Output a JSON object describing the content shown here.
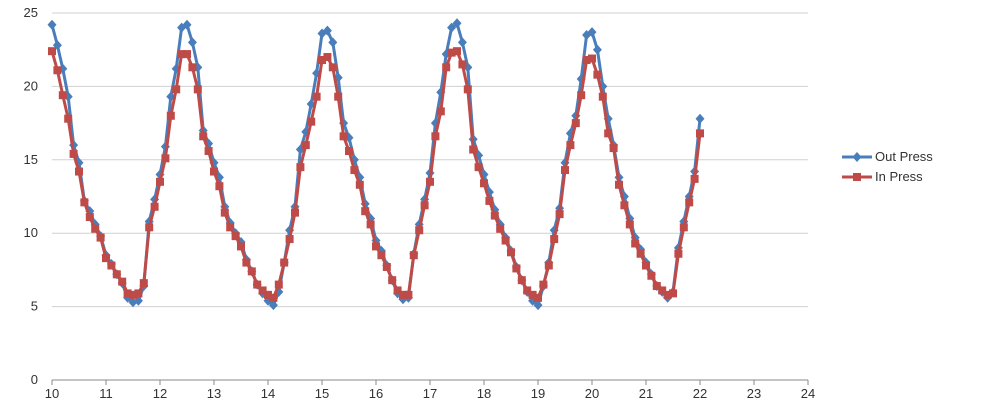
{
  "chart_data": {
    "type": "line",
    "xlim": [
      10,
      24
    ],
    "ylim": [
      0,
      25
    ],
    "x_ticks": [
      "10",
      "11",
      "12",
      "13",
      "14",
      "15",
      "16",
      "17",
      "18",
      "19",
      "20",
      "21",
      "22",
      "23",
      "24"
    ],
    "y_ticks": [
      "0",
      "5",
      "10",
      "15",
      "20",
      "25"
    ],
    "grid": {
      "horizontal": true,
      "vertical": false
    },
    "legend_position": "right",
    "series": [
      {
        "name": "Out Press",
        "color": "#4a7ebb",
        "marker": "diamond",
        "points": [
          [
            10.0,
            24.2
          ],
          [
            10.1,
            22.8
          ],
          [
            10.2,
            21.2
          ],
          [
            10.3,
            19.3
          ],
          [
            10.4,
            16.0
          ],
          [
            10.5,
            14.8
          ],
          [
            10.6,
            12.2
          ],
          [
            10.7,
            11.5
          ],
          [
            10.8,
            10.6
          ],
          [
            10.9,
            9.8
          ],
          [
            11.0,
            8.5
          ],
          [
            11.1,
            7.9
          ],
          [
            11.2,
            7.2
          ],
          [
            11.3,
            6.6
          ],
          [
            11.4,
            5.6
          ],
          [
            11.5,
            5.3
          ],
          [
            11.6,
            5.4
          ],
          [
            11.7,
            6.4
          ],
          [
            11.8,
            10.8
          ],
          [
            11.9,
            12.3
          ],
          [
            12.0,
            14.0
          ],
          [
            12.1,
            15.9
          ],
          [
            12.2,
            19.3
          ],
          [
            12.3,
            21.2
          ],
          [
            12.4,
            24.0
          ],
          [
            12.5,
            24.2
          ],
          [
            12.6,
            23.0
          ],
          [
            12.7,
            21.3
          ],
          [
            12.8,
            17.0
          ],
          [
            12.9,
            16.1
          ],
          [
            13.0,
            14.8
          ],
          [
            13.1,
            13.8
          ],
          [
            13.2,
            11.8
          ],
          [
            13.3,
            10.7
          ],
          [
            13.4,
            10.0
          ],
          [
            13.5,
            9.4
          ],
          [
            13.6,
            8.2
          ],
          [
            13.7,
            7.4
          ],
          [
            13.8,
            6.5
          ],
          [
            13.9,
            5.9
          ],
          [
            14.0,
            5.4
          ],
          [
            14.1,
            5.1
          ],
          [
            14.2,
            6.0
          ],
          [
            14.3,
            8.0
          ],
          [
            14.4,
            10.2
          ],
          [
            14.5,
            11.8
          ],
          [
            14.6,
            15.7
          ],
          [
            14.7,
            16.9
          ],
          [
            14.8,
            18.8
          ],
          [
            14.9,
            20.9
          ],
          [
            15.0,
            23.6
          ],
          [
            15.1,
            23.8
          ],
          [
            15.2,
            23.0
          ],
          [
            15.3,
            20.6
          ],
          [
            15.4,
            17.5
          ],
          [
            15.5,
            16.5
          ],
          [
            15.6,
            15.0
          ],
          [
            15.7,
            13.8
          ],
          [
            15.8,
            12.0
          ],
          [
            15.9,
            11.0
          ],
          [
            16.0,
            9.5
          ],
          [
            16.1,
            8.8
          ],
          [
            16.2,
            7.8
          ],
          [
            16.3,
            6.8
          ],
          [
            16.4,
            5.9
          ],
          [
            16.5,
            5.5
          ],
          [
            16.6,
            5.6
          ],
          [
            16.7,
            8.6
          ],
          [
            16.8,
            10.6
          ],
          [
            16.9,
            12.3
          ],
          [
            17.0,
            14.1
          ],
          [
            17.1,
            17.5
          ],
          [
            17.2,
            19.6
          ],
          [
            17.3,
            22.2
          ],
          [
            17.4,
            24.0
          ],
          [
            17.5,
            24.3
          ],
          [
            17.6,
            23.0
          ],
          [
            17.7,
            21.3
          ],
          [
            17.8,
            16.4
          ],
          [
            17.9,
            15.3
          ],
          [
            18.0,
            14.0
          ],
          [
            18.1,
            12.8
          ],
          [
            18.2,
            11.6
          ],
          [
            18.3,
            10.6
          ],
          [
            18.4,
            9.7
          ],
          [
            18.5,
            8.8
          ],
          [
            18.6,
            7.7
          ],
          [
            18.7,
            6.8
          ],
          [
            18.8,
            6.0
          ],
          [
            18.9,
            5.4
          ],
          [
            19.0,
            5.1
          ],
          [
            19.1,
            6.4
          ],
          [
            19.2,
            8.0
          ],
          [
            19.3,
            10.2
          ],
          [
            19.4,
            11.7
          ],
          [
            19.5,
            14.8
          ],
          [
            19.6,
            16.8
          ],
          [
            19.7,
            18.0
          ],
          [
            19.8,
            20.5
          ],
          [
            19.9,
            23.5
          ],
          [
            20.0,
            23.7
          ],
          [
            20.1,
            22.5
          ],
          [
            20.2,
            20.0
          ],
          [
            20.3,
            17.8
          ],
          [
            20.4,
            16.0
          ],
          [
            20.5,
            13.8
          ],
          [
            20.6,
            12.5
          ],
          [
            20.7,
            11.0
          ],
          [
            20.8,
            9.7
          ],
          [
            20.9,
            8.9
          ],
          [
            21.0,
            8.0
          ],
          [
            21.1,
            7.2
          ],
          [
            21.2,
            6.4
          ],
          [
            21.3,
            6.0
          ],
          [
            21.4,
            5.6
          ],
          [
            21.5,
            6.0
          ],
          [
            21.6,
            9.0
          ],
          [
            21.7,
            10.8
          ],
          [
            21.8,
            12.5
          ],
          [
            21.9,
            14.2
          ],
          [
            22.0,
            17.8
          ]
        ]
      },
      {
        "name": "In Press",
        "color": "#be4b48",
        "marker": "square",
        "points": [
          [
            10.0,
            22.4
          ],
          [
            10.1,
            21.1
          ],
          [
            10.2,
            19.4
          ],
          [
            10.3,
            17.8
          ],
          [
            10.4,
            15.4
          ],
          [
            10.5,
            14.2
          ],
          [
            10.6,
            12.1
          ],
          [
            10.7,
            11.1
          ],
          [
            10.8,
            10.3
          ],
          [
            10.9,
            9.7
          ],
          [
            11.0,
            8.3
          ],
          [
            11.1,
            7.8
          ],
          [
            11.2,
            7.2
          ],
          [
            11.3,
            6.7
          ],
          [
            11.4,
            5.9
          ],
          [
            11.5,
            5.8
          ],
          [
            11.6,
            5.9
          ],
          [
            11.7,
            6.6
          ],
          [
            11.8,
            10.4
          ],
          [
            11.9,
            11.8
          ],
          [
            12.0,
            13.5
          ],
          [
            12.1,
            15.1
          ],
          [
            12.2,
            18.0
          ],
          [
            12.3,
            19.8
          ],
          [
            12.4,
            22.2
          ],
          [
            12.5,
            22.2
          ],
          [
            12.6,
            21.3
          ],
          [
            12.7,
            19.8
          ],
          [
            12.8,
            16.6
          ],
          [
            12.9,
            15.6
          ],
          [
            13.0,
            14.2
          ],
          [
            13.1,
            13.2
          ],
          [
            13.2,
            11.4
          ],
          [
            13.3,
            10.4
          ],
          [
            13.4,
            9.8
          ],
          [
            13.5,
            9.1
          ],
          [
            13.6,
            8.0
          ],
          [
            13.7,
            7.4
          ],
          [
            13.8,
            6.5
          ],
          [
            13.9,
            6.1
          ],
          [
            14.0,
            5.8
          ],
          [
            14.1,
            5.6
          ],
          [
            14.2,
            6.5
          ],
          [
            14.3,
            8.0
          ],
          [
            14.4,
            9.6
          ],
          [
            14.5,
            11.4
          ],
          [
            14.6,
            14.5
          ],
          [
            14.7,
            16.0
          ],
          [
            14.8,
            17.6
          ],
          [
            14.9,
            19.3
          ],
          [
            15.0,
            21.8
          ],
          [
            15.1,
            22.0
          ],
          [
            15.2,
            21.3
          ],
          [
            15.3,
            19.3
          ],
          [
            15.4,
            16.6
          ],
          [
            15.5,
            15.6
          ],
          [
            15.6,
            14.3
          ],
          [
            15.7,
            13.3
          ],
          [
            15.8,
            11.5
          ],
          [
            15.9,
            10.6
          ],
          [
            16.0,
            9.1
          ],
          [
            16.1,
            8.5
          ],
          [
            16.2,
            7.7
          ],
          [
            16.3,
            6.8
          ],
          [
            16.4,
            6.1
          ],
          [
            16.5,
            5.8
          ],
          [
            16.6,
            5.8
          ],
          [
            16.7,
            8.5
          ],
          [
            16.8,
            10.2
          ],
          [
            16.9,
            11.9
          ],
          [
            17.0,
            13.5
          ],
          [
            17.1,
            16.6
          ],
          [
            17.2,
            18.3
          ],
          [
            17.3,
            21.3
          ],
          [
            17.4,
            22.3
          ],
          [
            17.5,
            22.4
          ],
          [
            17.6,
            21.5
          ],
          [
            17.7,
            19.8
          ],
          [
            17.8,
            15.7
          ],
          [
            17.9,
            14.5
          ],
          [
            18.0,
            13.4
          ],
          [
            18.1,
            12.2
          ],
          [
            18.2,
            11.2
          ],
          [
            18.3,
            10.3
          ],
          [
            18.4,
            9.5
          ],
          [
            18.5,
            8.7
          ],
          [
            18.6,
            7.6
          ],
          [
            18.7,
            6.8
          ],
          [
            18.8,
            6.1
          ],
          [
            18.9,
            5.8
          ],
          [
            19.0,
            5.6
          ],
          [
            19.1,
            6.5
          ],
          [
            19.2,
            7.8
          ],
          [
            19.3,
            9.6
          ],
          [
            19.4,
            11.3
          ],
          [
            19.5,
            14.3
          ],
          [
            19.6,
            16.0
          ],
          [
            19.7,
            17.5
          ],
          [
            19.8,
            19.4
          ],
          [
            19.9,
            21.8
          ],
          [
            20.0,
            21.9
          ],
          [
            20.1,
            20.8
          ],
          [
            20.2,
            19.3
          ],
          [
            20.3,
            16.8
          ],
          [
            20.4,
            15.8
          ],
          [
            20.5,
            13.3
          ],
          [
            20.6,
            11.9
          ],
          [
            20.7,
            10.6
          ],
          [
            20.8,
            9.3
          ],
          [
            20.9,
            8.6
          ],
          [
            21.0,
            7.8
          ],
          [
            21.1,
            7.1
          ],
          [
            21.2,
            6.4
          ],
          [
            21.3,
            6.1
          ],
          [
            21.4,
            5.8
          ],
          [
            21.5,
            5.9
          ],
          [
            21.6,
            8.6
          ],
          [
            21.7,
            10.4
          ],
          [
            21.8,
            12.1
          ],
          [
            21.9,
            13.7
          ],
          [
            22.0,
            16.8
          ]
        ]
      }
    ]
  }
}
